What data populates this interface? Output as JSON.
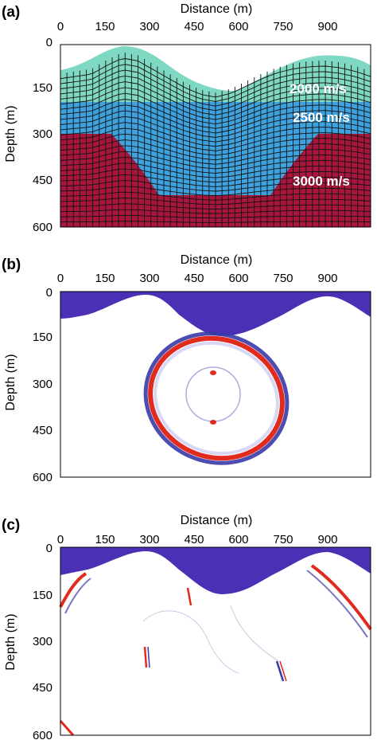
{
  "figure": {
    "panels": [
      {
        "id": "a",
        "letter": "(a)",
        "xlabel": "Distance (m)",
        "ylabel": "Depth (m)",
        "xticks": [
          "0",
          "150",
          "300",
          "450",
          "600",
          "750",
          "900"
        ],
        "yticks": [
          "0",
          "150",
          "300",
          "450",
          "600"
        ],
        "layers": [
          {
            "label": "2000 m/s",
            "color": "#7fd8c2"
          },
          {
            "label": "2500 m/s",
            "color": "#3da2dd"
          },
          {
            "label": "3000 m/s",
            "color": "#a8163e"
          }
        ]
      },
      {
        "id": "b",
        "letter": "(b)",
        "xlabel": "Distance (m)",
        "ylabel": "Depth (m)",
        "xticks": [
          "0",
          "150",
          "300",
          "450",
          "600",
          "750",
          "900"
        ],
        "yticks": [
          "0",
          "150",
          "300",
          "450",
          "600"
        ]
      },
      {
        "id": "c",
        "letter": "(c)",
        "xlabel": "Distance (m)",
        "ylabel": "Depth (m)",
        "xticks": [
          "0",
          "150",
          "300",
          "450",
          "600",
          "750",
          "900"
        ],
        "yticks": [
          "0",
          "150",
          "300",
          "450",
          "600"
        ]
      }
    ],
    "colors": {
      "air": "#4b2fb4",
      "positive": "#e02b1e",
      "negative": "#3a3aa8",
      "grid": "#111111"
    }
  },
  "chart_data": [
    {
      "type": "other",
      "panel": "a",
      "xlim": [
        0,
        1000
      ],
      "ylim": [
        600,
        0
      ],
      "surface_depth": {
        "x": [
          0,
          100,
          150,
          200,
          250,
          300,
          350,
          400,
          450,
          500,
          550,
          600,
          650,
          700,
          750,
          800,
          850,
          900,
          950,
          1000
        ],
        "y": [
          95,
          80,
          50,
          25,
          35,
          65,
          95,
          125,
          148,
          158,
          145,
          120,
          95,
          75,
          62,
          55,
          52,
          58,
          70,
          88
        ]
      },
      "layer_interfaces_depth": [
        200,
        295
      ],
      "basin_bottom_depth": 500,
      "velocities_m_per_s": [
        2000,
        2500,
        3000
      ]
    },
    {
      "type": "other",
      "panel": "b",
      "xlim": [
        0,
        1000
      ],
      "ylim": [
        600,
        0
      ],
      "wavefront_center": [
        500,
        380
      ],
      "wavefront_radius": [
        165,
        170
      ]
    },
    {
      "type": "other",
      "panel": "c",
      "xlim": [
        0,
        1000
      ],
      "ylim": [
        600,
        0
      ]
    }
  ]
}
